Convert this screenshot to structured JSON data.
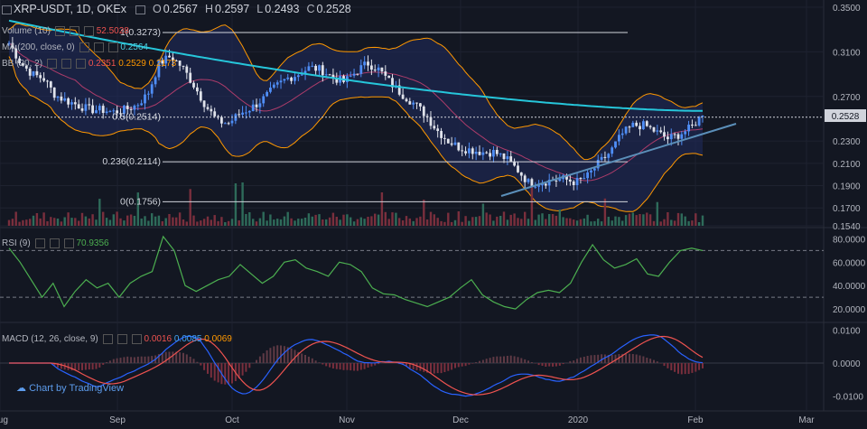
{
  "header": {
    "symbol": "XRP-USDT, 1D, OKEx",
    "o_label": "O",
    "o": "0.2567",
    "h_label": "H",
    "h": "0.2597",
    "l_label": "L",
    "l": "0.2493",
    "c_label": "C",
    "c": "0.2528"
  },
  "indicators": {
    "volume": {
      "label": "Volume (10)",
      "value": "52.5028"
    },
    "ma": {
      "label": "MA (200, close, 0)",
      "value": "0.2564"
    },
    "bb": {
      "label": "BB (20, 2)",
      "v1": "0.2351",
      "v2": "0.2529",
      "v3": "0.2173"
    },
    "rsi": {
      "label": "RSI (9)",
      "value": "70.9356"
    },
    "macd": {
      "label": "MACD (12, 26, close, 9)",
      "v1": "0.0016",
      "v2": "0.0085",
      "v3": "0.0069"
    }
  },
  "fib_levels": [
    {
      "label": "1(0.3273)",
      "value": 0.3273
    },
    {
      "label": "0.5(0.2514)",
      "value": 0.2514
    },
    {
      "label": "0.236(0.2114)",
      "value": 0.2114
    },
    {
      "label": "0(0.1756)",
      "value": 0.1756
    }
  ],
  "price_axis_ticks": [
    "0.3500",
    "0.3100",
    "0.2700",
    "0.2300",
    "0.2100",
    "0.1900",
    "0.1700",
    "0.1540"
  ],
  "last_price_label": "0.2528",
  "rsi_axis_ticks": [
    "80.0000",
    "60.0000",
    "40.0000",
    "20.0000"
  ],
  "macd_axis_ticks": [
    "0.0100",
    "0.0000",
    "-0.0100"
  ],
  "time_axis": [
    "Aug",
    "Sep",
    "Oct",
    "Nov",
    "Dec",
    "2020",
    "Feb",
    "Mar"
  ],
  "brand": "Chart by TradingView",
  "colors": {
    "bg": "#131722",
    "up": "#4f8ef7",
    "down": "#e0e3eb",
    "ma": "#26c6da",
    "bb": "#ff9800",
    "bb_mid": "#ad3c6a",
    "rsi": "#4caf50",
    "macd": "#2962ff",
    "signal": "#ef5350",
    "trend": "#5b8fb9"
  },
  "chart_data": {
    "type": "candlestick",
    "x_range": [
      "Aug",
      "Mar"
    ],
    "price_ylim": [
      0.154,
      0.35
    ],
    "price_path": [
      [
        "Aug",
        0.318
      ],
      [
        "Aug",
        0.3
      ],
      [
        "Aug",
        0.29
      ],
      [
        "Aug",
        0.286
      ],
      [
        "Aug",
        0.271
      ],
      [
        "Aug",
        0.266
      ],
      [
        "Aug",
        0.262
      ],
      [
        "Aug",
        0.258
      ],
      [
        "Sep",
        0.258
      ],
      [
        "Sep",
        0.256
      ],
      [
        "Sep",
        0.258
      ],
      [
        "Sep",
        0.262
      ],
      [
        "Sep",
        0.272
      ],
      [
        "Sep",
        0.3
      ],
      [
        "Sep",
        0.306
      ],
      [
        "Sep",
        0.296
      ],
      [
        "Sep",
        0.28
      ],
      [
        "Sep",
        0.262
      ],
      [
        "Sep",
        0.248
      ],
      [
        "Sep",
        0.246
      ],
      [
        "Oct",
        0.255
      ],
      [
        "Oct",
        0.26
      ],
      [
        "Oct",
        0.268
      ],
      [
        "Oct",
        0.278
      ],
      [
        "Oct",
        0.286
      ],
      [
        "Oct",
        0.29
      ],
      [
        "Oct",
        0.296
      ],
      [
        "Oct",
        0.294
      ],
      [
        "Oct",
        0.287
      ],
      [
        "Oct",
        0.283
      ],
      [
        "Nov",
        0.292
      ],
      [
        "Nov",
        0.3
      ],
      [
        "Nov",
        0.294
      ],
      [
        "Nov",
        0.282
      ],
      [
        "Nov",
        0.272
      ],
      [
        "Nov",
        0.264
      ],
      [
        "Nov",
        0.254
      ],
      [
        "Nov",
        0.24
      ],
      [
        "Nov",
        0.23
      ],
      [
        "Nov",
        0.224
      ],
      [
        "Dec",
        0.222
      ],
      [
        "Dec",
        0.22
      ],
      [
        "Dec",
        0.22
      ],
      [
        "Dec",
        0.214
      ],
      [
        "Dec",
        0.204
      ],
      [
        "Dec",
        0.192
      ],
      [
        "Dec",
        0.193
      ],
      [
        "Dec",
        0.195
      ],
      [
        "Dec",
        0.196
      ],
      [
        "Dec",
        0.193
      ],
      [
        "2020",
        0.198
      ],
      [
        "2020",
        0.21
      ],
      [
        "2020",
        0.22
      ],
      [
        "2020",
        0.236
      ],
      [
        "2020",
        0.244
      ],
      [
        "2020",
        0.244
      ],
      [
        "2020",
        0.238
      ],
      [
        "2020",
        0.232
      ],
      [
        "2020",
        0.236
      ],
      [
        "Feb",
        0.242
      ],
      [
        "Feb",
        0.254
      ]
    ],
    "ma200": {
      "name": "MA (200, close, 0)",
      "last": 0.2564,
      "from": 0.338,
      "to": 0.257
    },
    "volume": {
      "name": "Volume (10)",
      "last": 52.5028
    },
    "rsi": {
      "name": "RSI (9)",
      "last": 70.9356,
      "ylim": [
        10,
        85
      ],
      "bands": [
        30,
        70
      ],
      "values": [
        72,
        60,
        45,
        30,
        42,
        22,
        35,
        45,
        38,
        42,
        30,
        42,
        48,
        52,
        82,
        70,
        40,
        35,
        40,
        45,
        48,
        58,
        50,
        42,
        48,
        60,
        62,
        55,
        52,
        48,
        60,
        58,
        52,
        38,
        33,
        32,
        28,
        25,
        22,
        26,
        30,
        38,
        45,
        32,
        26,
        22,
        20,
        28,
        34,
        36,
        34,
        42,
        60,
        75,
        62,
        55,
        58,
        63,
        50,
        48,
        60,
        70,
        72,
        70
      ]
    },
    "macd": {
      "name": "MACD (12, 26, close, 9)",
      "values": [
        0.0016,
        0.0085,
        0.0069
      ],
      "ylim": [
        -0.0145,
        0.0115
      ]
    }
  }
}
